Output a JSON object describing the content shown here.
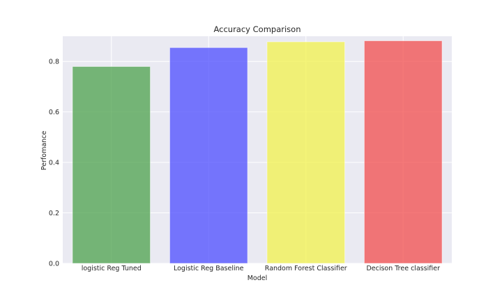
{
  "chart_data": {
    "type": "bar",
    "title": "Accuracy Comparison",
    "xlabel": "Model",
    "ylabel": "Perfomance",
    "categories": [
      "logistic Reg Tuned",
      "Logistic Reg Baseline",
      "Random Forest Classifier",
      "Decison Tree classifier"
    ],
    "values": [
      0.78,
      0.855,
      0.878,
      0.882
    ],
    "colors": [
      "#4ca24c",
      "#4c4cff",
      "#f2f24c",
      "#f24c4c"
    ],
    "ylim": [
      0,
      0.9
    ],
    "yticks": [
      0.0,
      0.2,
      0.4,
      0.6,
      0.8
    ],
    "ytick_labels": [
      "0.0",
      "0.2",
      "0.4",
      "0.6",
      "0.8"
    ],
    "grid": true,
    "background_color": "#eaeaf2"
  }
}
